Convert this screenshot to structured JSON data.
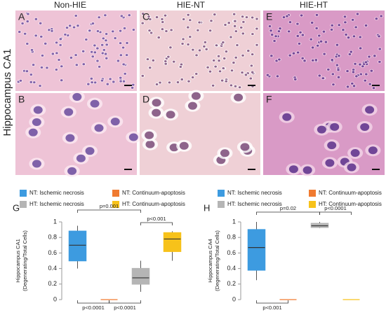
{
  "figure": {
    "row_label": "Hippocampus CA1",
    "columns": [
      "Non-HIE",
      "HIE-NT",
      "HIE-HT"
    ],
    "panels": [
      "A",
      "C",
      "E",
      "B",
      "D",
      "F"
    ]
  },
  "chart_data": [
    {
      "type": "box",
      "panel_label": "G",
      "ylabel": [
        "Hippocampus CA1",
        "(Degenerating/Total Cells)"
      ],
      "ylim": [
        0,
        1
      ],
      "yticks": [
        0,
        0.2,
        0.4,
        0.6,
        0.8,
        1
      ],
      "series": [
        {
          "name": "NT: Ischemic necrosis",
          "color": "#3d9be0",
          "low": 0.4,
          "q1": 0.5,
          "median": 0.7,
          "q3": 0.88,
          "high": 0.95
        },
        {
          "name": "NT: Continuum-apoptosis",
          "color": "#f07a30",
          "low": 0,
          "q1": 0,
          "median": 0,
          "q3": 0,
          "high": 0
        },
        {
          "name": "HT: Ischemic necrosis",
          "color": "#b5b5b5",
          "low": 0.1,
          "q1": 0.2,
          "median": 0.28,
          "q3": 0.4,
          "high": 0.5
        },
        {
          "name": "HT: Continuum-apoptosis",
          "color": "#f7c21a",
          "low": 0.5,
          "q1": 0.62,
          "median": 0.78,
          "q3": 0.86,
          "high": 0.88
        }
      ],
      "annotations": [
        "p=0.001",
        "p<0.001",
        "p<0.0001",
        "p<0.0001"
      ]
    },
    {
      "type": "box",
      "panel_label": "H",
      "ylabel": [
        "Hippocampus CA4",
        "(Degenerating/Total Cells)"
      ],
      "ylim": [
        0,
        1
      ],
      "yticks": [
        0,
        0.2,
        0.4,
        0.6,
        0.8,
        1
      ],
      "series": [
        {
          "name": "NT: Ischemic necrosis",
          "color": "#3d9be0",
          "low": 0.25,
          "q1": 0.38,
          "median": 0.67,
          "q3": 0.9,
          "high": 1
        },
        {
          "name": "NT: Continuum-apoptosis",
          "color": "#f07a30",
          "low": 0,
          "q1": 0,
          "median": 0,
          "q3": 0,
          "high": 0
        },
        {
          "name": "HT: Ischemic necrosis",
          "color": "#b5b5b5",
          "low": 0.92,
          "q1": 0.93,
          "median": 0.95,
          "q3": 0.98,
          "high": 1
        },
        {
          "name": "HT: Continuum-apoptosis",
          "color": "#f7c21a",
          "low": 0,
          "q1": 0,
          "median": 0,
          "q3": 0,
          "high": 0
        }
      ],
      "annotations": [
        "p=0.02",
        "p<0.0001",
        "p<0.001"
      ]
    }
  ]
}
